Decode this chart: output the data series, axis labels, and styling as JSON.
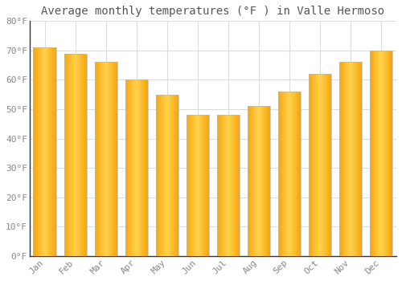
{
  "title": "Average monthly temperatures (°F ) in Valle Hermoso",
  "months": [
    "Jan",
    "Feb",
    "Mar",
    "Apr",
    "May",
    "Jun",
    "Jul",
    "Aug",
    "Sep",
    "Oct",
    "Nov",
    "Dec"
  ],
  "values": [
    71,
    69,
    66,
    60,
    55,
    48,
    48,
    51,
    56,
    62,
    66,
    70
  ],
  "bar_color_center": "#FFC84A",
  "bar_color_edge": "#F5A800",
  "background_color": "#FFFFFF",
  "plot_bg_color": "#FFFFFF",
  "grid_color": "#DDDDDD",
  "ylim": [
    0,
    80
  ],
  "yticks": [
    0,
    10,
    20,
    30,
    40,
    50,
    60,
    70,
    80
  ],
  "ytick_labels": [
    "0°F",
    "10°F",
    "20°F",
    "30°F",
    "40°F",
    "50°F",
    "60°F",
    "70°F",
    "80°F"
  ],
  "title_fontsize": 10,
  "tick_fontsize": 8,
  "title_color": "#555555",
  "tick_color": "#888888",
  "spine_color": "#333333",
  "bar_width": 0.75
}
